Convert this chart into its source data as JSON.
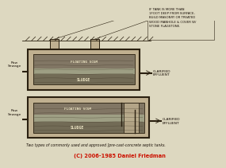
{
  "title": "Two types of commonly used and approved [pre-cast-concrete septic tanks.",
  "copyright": "(C) 2006-1985 Daniel Friedman",
  "bg_color": "#ddd8c0",
  "tank1": {
    "label_in": "Raw\nSewage",
    "label_out": "CLARIFIED\nEFFLUENT",
    "interior_label1": "FLOATING SCUM",
    "interior_label2": "SLUDGE",
    "note": "IF TANK IS MORE THAN\n1FOOT DEEP FROM SURFACE,\nBUILD MASONRY OR TREATED\nWOOD MANHOLE & COVER W/\nSTONE FLAGSTONE."
  },
  "tank2": {
    "label_in": "Raw\nSewage",
    "label_out": "CLARIFIED\nEFFLUENT",
    "interior_label1": "FLOATING SCUM",
    "interior_label2": "SLUDGE"
  },
  "line_color": "#2a2010",
  "wall_color": "#c0b090",
  "water_color": "#888070",
  "sludge_color": "#6a6050",
  "font_color": "#1a1008"
}
